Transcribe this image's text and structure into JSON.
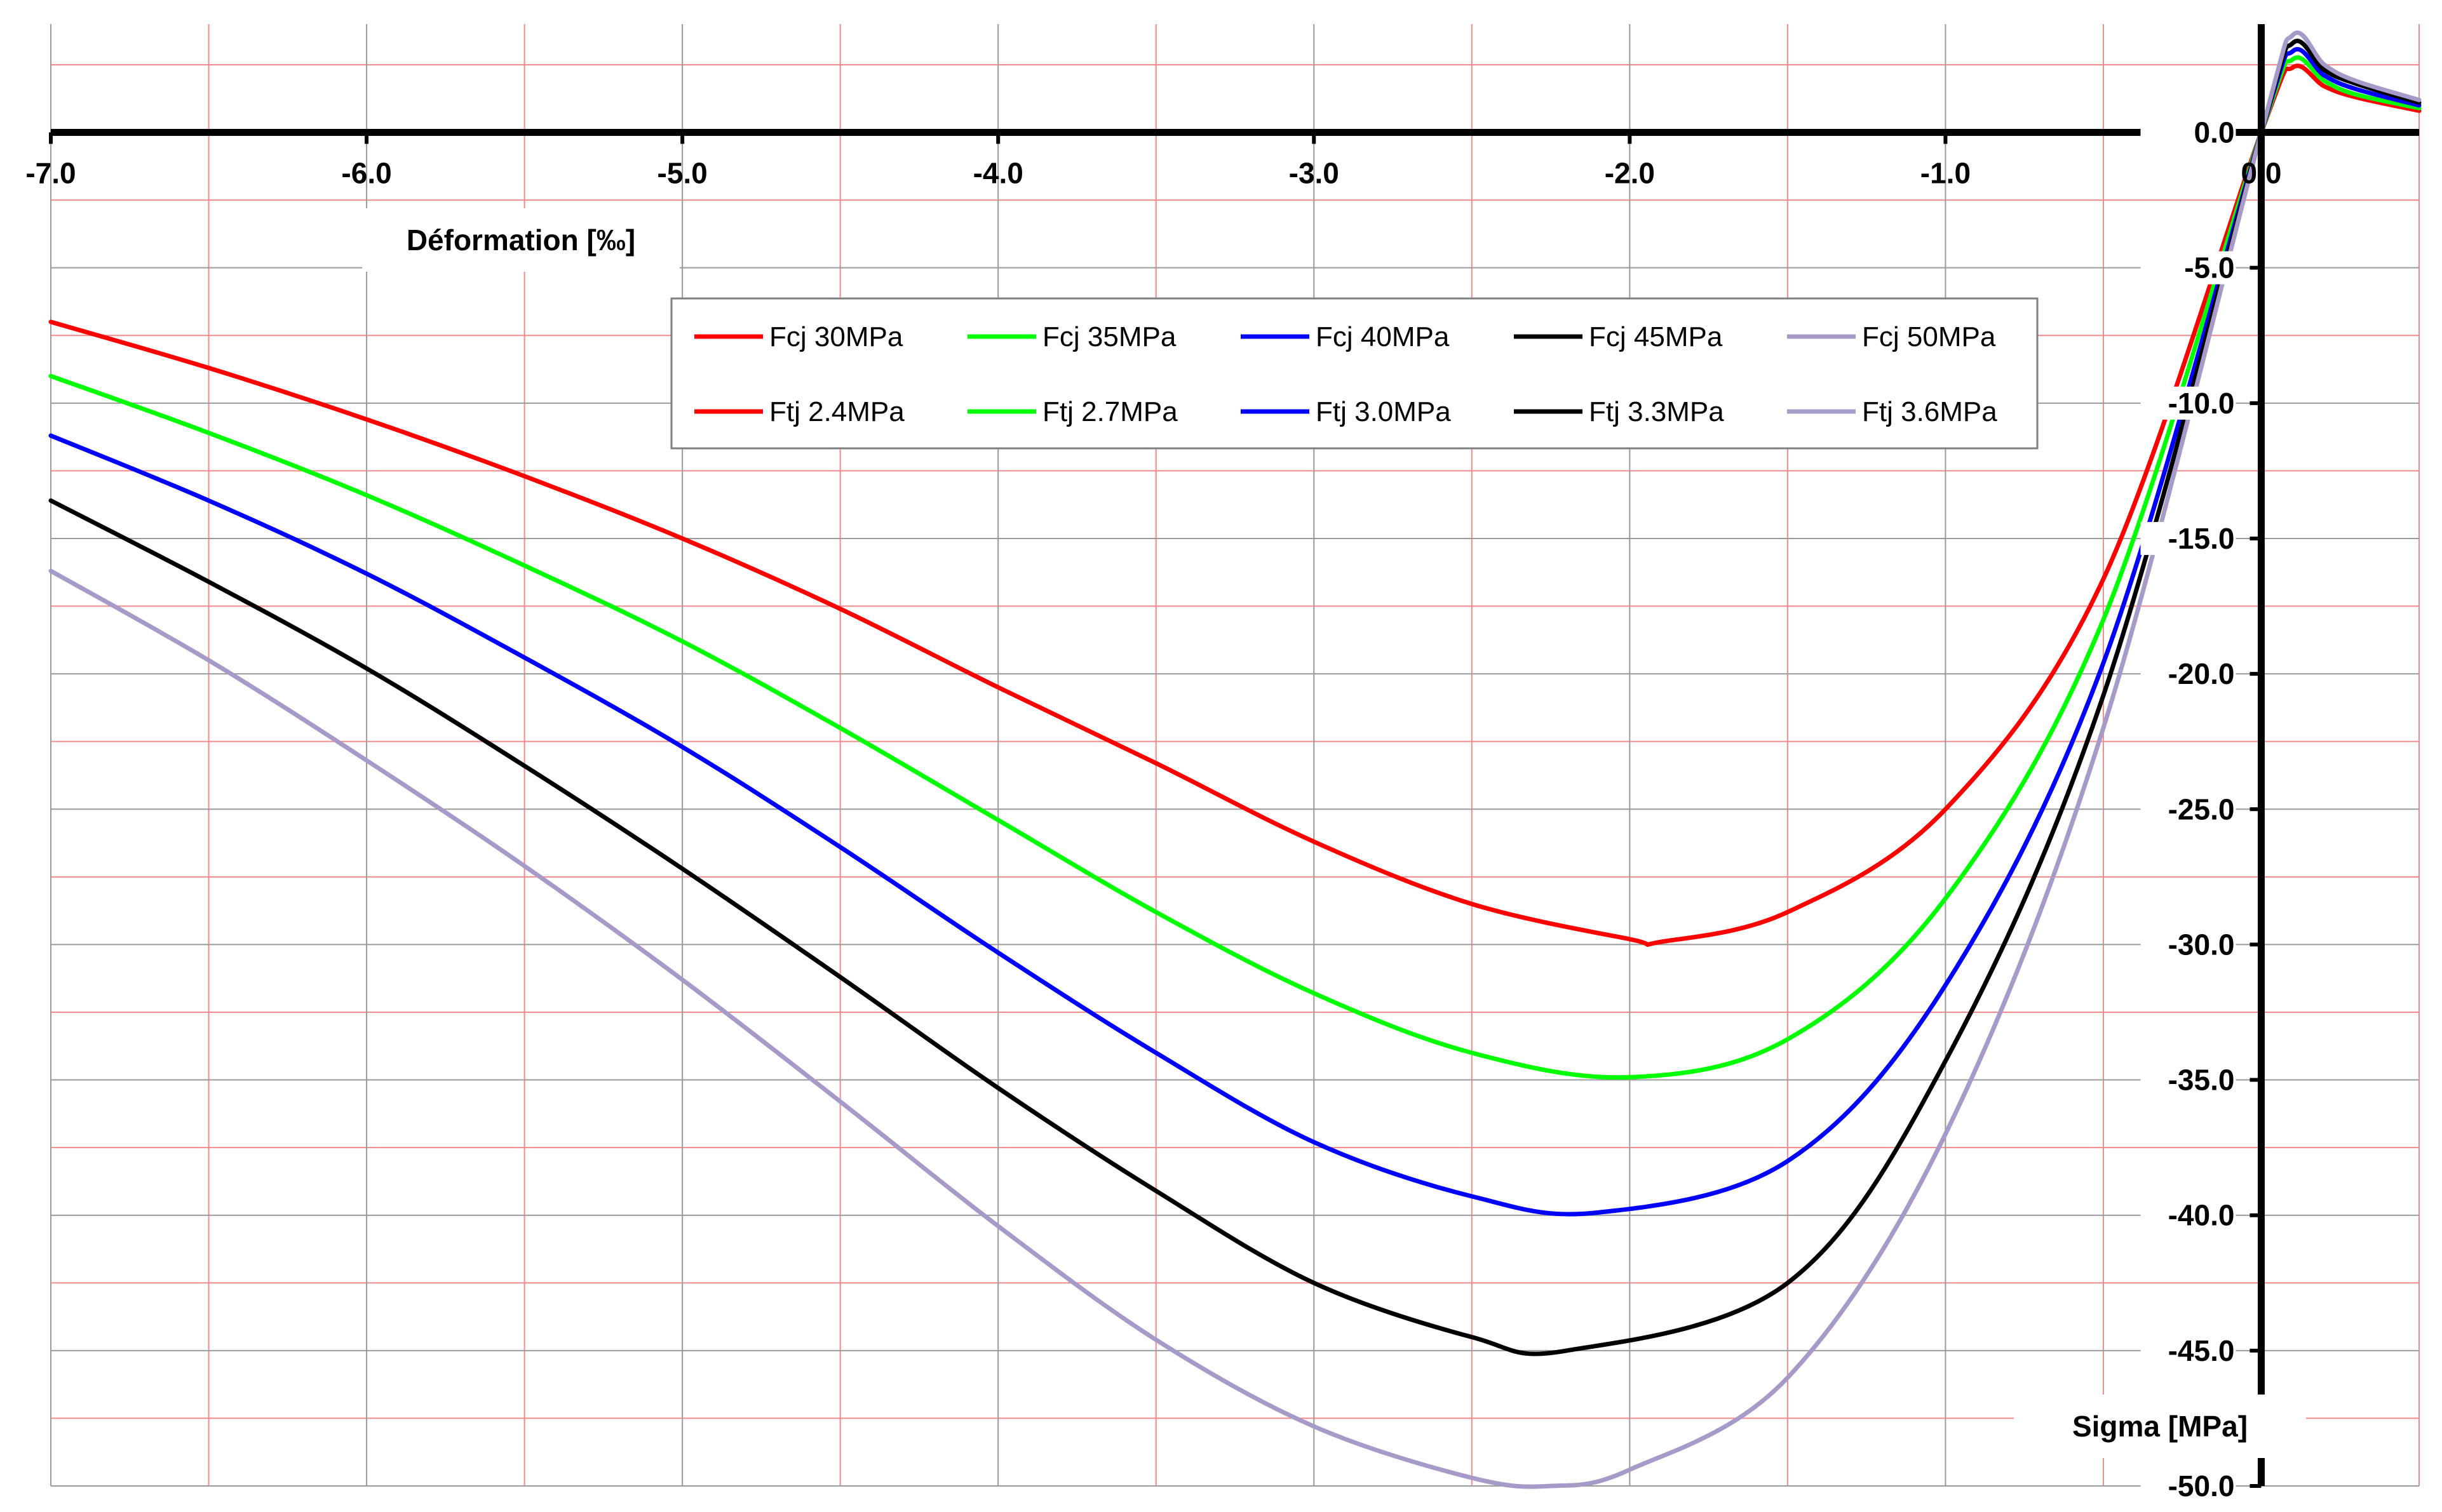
{
  "chart_data": {
    "type": "line",
    "xlabel": "Déformation [‰]",
    "ylabel": "Sigma [MPa]",
    "xlim": [
      -7.0,
      0.5
    ],
    "ylim": [
      -50.0,
      4.0
    ],
    "x_ticks": [
      -7.0,
      -6.0,
      -5.0,
      -4.0,
      -3.0,
      -2.0,
      -1.0,
      0.0
    ],
    "x_tick_labels": [
      "-7.0",
      "-6.0",
      "-5.0",
      "-4.0",
      "-3.0",
      "-2.0",
      "-1.0",
      "0.0"
    ],
    "y_ticks": [
      0.0,
      -5.0,
      -10.0,
      -15.0,
      -20.0,
      -25.0,
      -30.0,
      -35.0,
      -40.0,
      -45.0,
      -50.0
    ],
    "y_tick_labels": [
      "0.0",
      "-5.0",
      "-10.0",
      "-15.0",
      "-20.0",
      "-25.0",
      "-30.0",
      "-35.0",
      "-40.0",
      "-45.0",
      "-50.0"
    ],
    "grid": {
      "major": "gray",
      "minor": "red",
      "x_major_step": 1.0,
      "x_minor_step": 0.5,
      "y_major_step": 5.0,
      "y_minor_step": 2.5
    },
    "legend_placement": "top-center",
    "series": [
      {
        "name": "Fcj 30MPa",
        "tension_label": "Ftj 2.4MPa",
        "color": "#ff0000",
        "fc": 30,
        "ft": 2.4,
        "points": [
          [
            -7.0,
            -7.0
          ],
          [
            -6.5,
            -8.7
          ],
          [
            -6.0,
            -10.6
          ],
          [
            -5.5,
            -12.7
          ],
          [
            -5.0,
            -15.0
          ],
          [
            -4.5,
            -17.6
          ],
          [
            -4.0,
            -20.5
          ],
          [
            -3.5,
            -23.3
          ],
          [
            -3.0,
            -26.2
          ],
          [
            -2.5,
            -28.5
          ],
          [
            -2.0,
            -29.8
          ],
          [
            -1.9,
            -29.9
          ],
          [
            -1.5,
            -28.8
          ],
          [
            -1.0,
            -25.0
          ],
          [
            -0.5,
            -16.5
          ],
          [
            0.0,
            0.0
          ],
          [
            0.1,
            2.4
          ],
          [
            0.2,
            1.7
          ],
          [
            0.3,
            1.3
          ],
          [
            0.5,
            0.8
          ]
        ]
      },
      {
        "name": "Fcj 35MPa",
        "tension_label": "Ftj 2.7MPa",
        "color": "#00ff00",
        "fc": 35,
        "ft": 2.7,
        "points": [
          [
            -7.0,
            -9.0
          ],
          [
            -6.5,
            -11.1
          ],
          [
            -6.0,
            -13.4
          ],
          [
            -5.5,
            -16.0
          ],
          [
            -5.0,
            -18.8
          ],
          [
            -4.5,
            -22.0
          ],
          [
            -4.0,
            -25.4
          ],
          [
            -3.5,
            -28.8
          ],
          [
            -3.0,
            -31.8
          ],
          [
            -2.5,
            -34.0
          ],
          [
            -2.0,
            -34.9
          ],
          [
            -1.5,
            -33.5
          ],
          [
            -1.0,
            -28.3
          ],
          [
            -0.5,
            -18.0
          ],
          [
            0.0,
            0.0
          ],
          [
            0.1,
            2.7
          ],
          [
            0.2,
            1.9
          ],
          [
            0.3,
            1.4
          ],
          [
            0.5,
            0.9
          ]
        ]
      },
      {
        "name": "Fcj 40MPa",
        "tension_label": "Ftj 3.0MPa",
        "color": "#0000ff",
        "fc": 40,
        "ft": 3.0,
        "points": [
          [
            -7.0,
            -11.2
          ],
          [
            -6.5,
            -13.6
          ],
          [
            -6.0,
            -16.3
          ],
          [
            -5.5,
            -19.4
          ],
          [
            -5.0,
            -22.7
          ],
          [
            -4.5,
            -26.4
          ],
          [
            -4.0,
            -30.3
          ],
          [
            -3.5,
            -34.0
          ],
          [
            -3.0,
            -37.3
          ],
          [
            -2.5,
            -39.3
          ],
          [
            -2.1,
            -39.9
          ],
          [
            -1.5,
            -38.0
          ],
          [
            -1.0,
            -31.5
          ],
          [
            -0.5,
            -19.6
          ],
          [
            0.0,
            0.0
          ],
          [
            0.1,
            3.0
          ],
          [
            0.2,
            2.1
          ],
          [
            0.3,
            1.6
          ],
          [
            0.5,
            1.0
          ]
        ]
      },
      {
        "name": "Fcj 45MPa",
        "tension_label": "Ftj 3.3MPa",
        "color": "#000000",
        "fc": 45,
        "ft": 3.3,
        "points": [
          [
            -7.0,
            -13.6
          ],
          [
            -6.5,
            -16.6
          ],
          [
            -6.0,
            -19.8
          ],
          [
            -5.5,
            -23.4
          ],
          [
            -5.0,
            -27.2
          ],
          [
            -4.5,
            -31.2
          ],
          [
            -4.0,
            -35.3
          ],
          [
            -3.5,
            -39.1
          ],
          [
            -3.0,
            -42.5
          ],
          [
            -2.5,
            -44.5
          ],
          [
            -2.2,
            -45.0
          ],
          [
            -1.5,
            -42.5
          ],
          [
            -1.0,
            -34.3
          ],
          [
            -0.5,
            -20.8
          ],
          [
            0.0,
            0.0
          ],
          [
            0.1,
            3.3
          ],
          [
            0.2,
            2.3
          ],
          [
            0.3,
            1.8
          ],
          [
            0.5,
            1.1
          ]
        ]
      },
      {
        "name": "Fcj 50MPa",
        "tension_label": "Ftj 3.6MPa",
        "color": "#a89ac8",
        "fc": 50,
        "ft": 3.6,
        "points": [
          [
            -7.0,
            -16.2
          ],
          [
            -6.5,
            -19.5
          ],
          [
            -6.0,
            -23.2
          ],
          [
            -5.5,
            -27.1
          ],
          [
            -5.0,
            -31.3
          ],
          [
            -4.5,
            -35.8
          ],
          [
            -4.0,
            -40.4
          ],
          [
            -3.5,
            -44.6
          ],
          [
            -3.0,
            -47.8
          ],
          [
            -2.5,
            -49.7
          ],
          [
            -2.25,
            -50.0
          ],
          [
            -2.0,
            -49.4
          ],
          [
            -1.5,
            -46.0
          ],
          [
            -1.0,
            -37.0
          ],
          [
            -0.5,
            -22.0
          ],
          [
            0.0,
            0.0
          ],
          [
            0.1,
            3.6
          ],
          [
            0.2,
            2.5
          ],
          [
            0.3,
            1.9
          ],
          [
            0.5,
            1.2
          ]
        ]
      }
    ]
  }
}
